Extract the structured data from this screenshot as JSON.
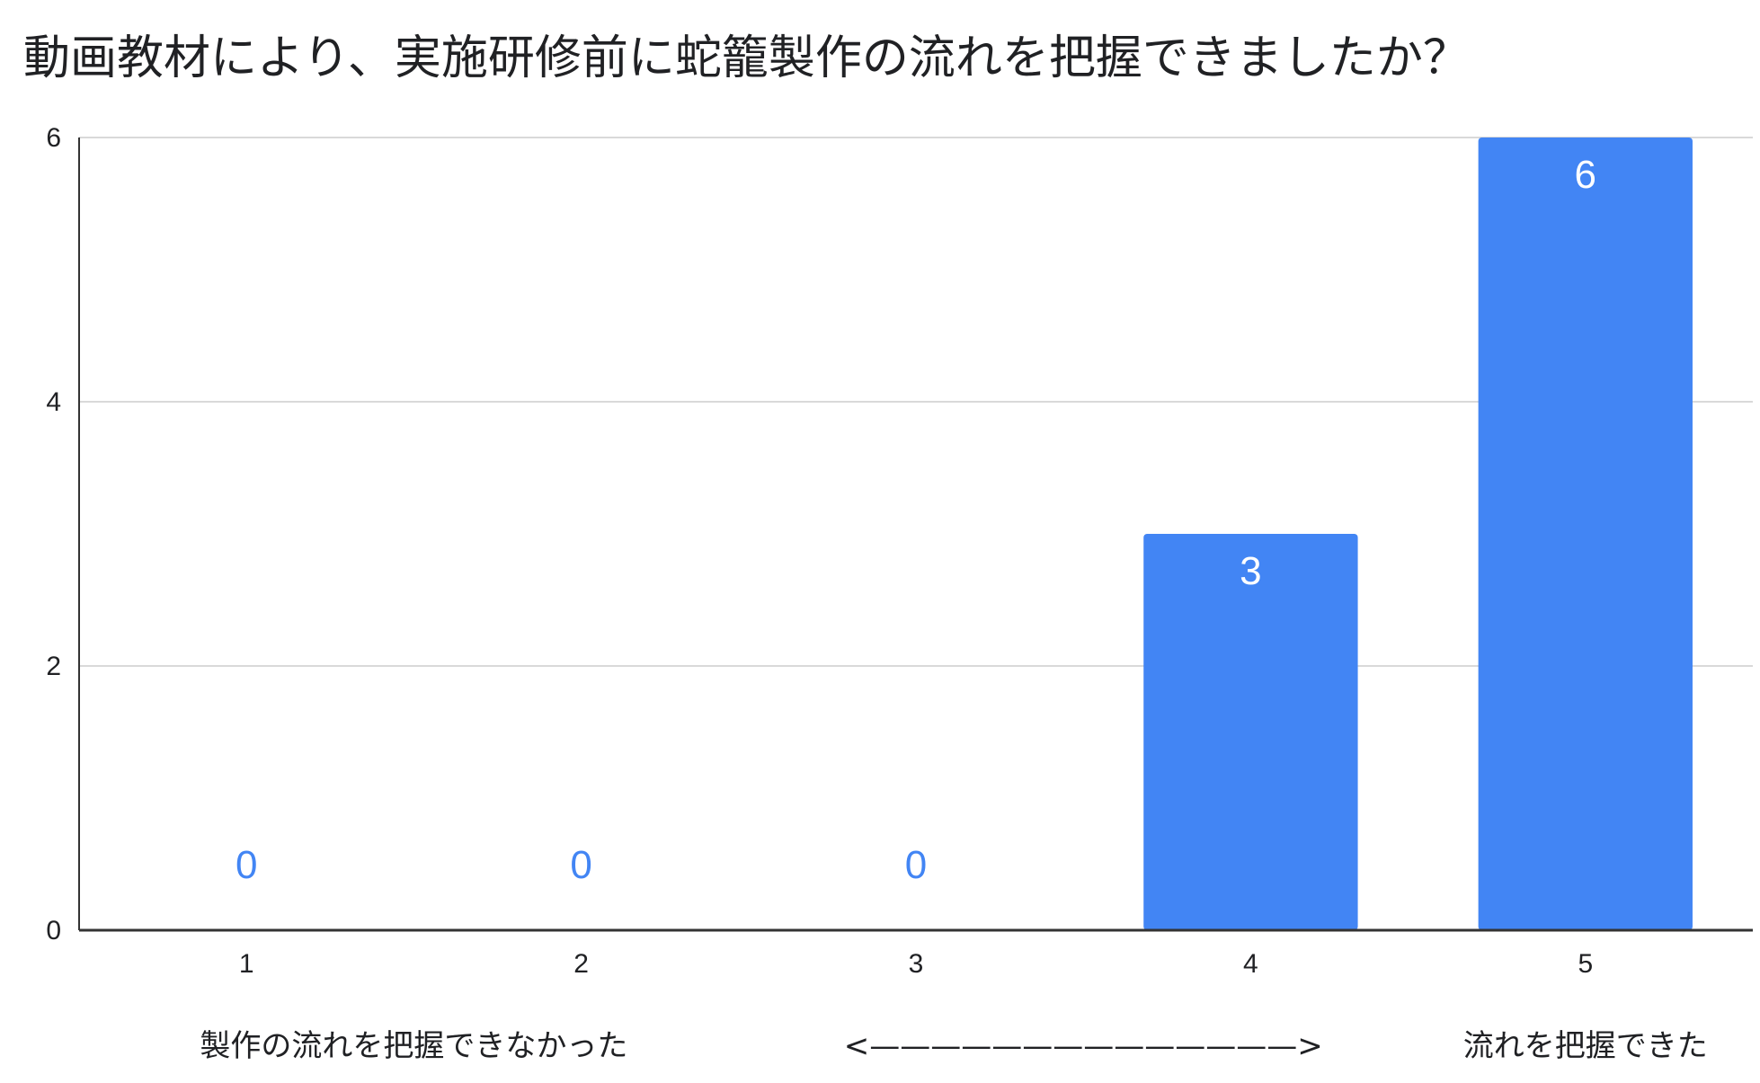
{
  "chart_data": {
    "type": "bar",
    "title": "動画教材により、実施研修前に蛇籠製作の流れを把握できましたか？",
    "categories": [
      "1",
      "2",
      "3",
      "4",
      "5"
    ],
    "values": [
      0,
      0,
      0,
      3,
      6
    ],
    "ylim": [
      0,
      6
    ],
    "yticks": [
      0,
      2,
      4,
      6
    ],
    "grid": true,
    "legend": "none",
    "bar_color": "#4285f4",
    "data_label_inside_color": "#ffffff",
    "data_label_outside_color": "#4285f4",
    "footer_labels": [
      {
        "text": "製作の流れを把握できなかった",
        "category": "1",
        "span_to": "2"
      },
      {
        "text": "<——————————————>",
        "category": "3",
        "span_to": "4"
      },
      {
        "text": "流れを把握できた",
        "category": "5",
        "span_to": "5"
      }
    ]
  }
}
